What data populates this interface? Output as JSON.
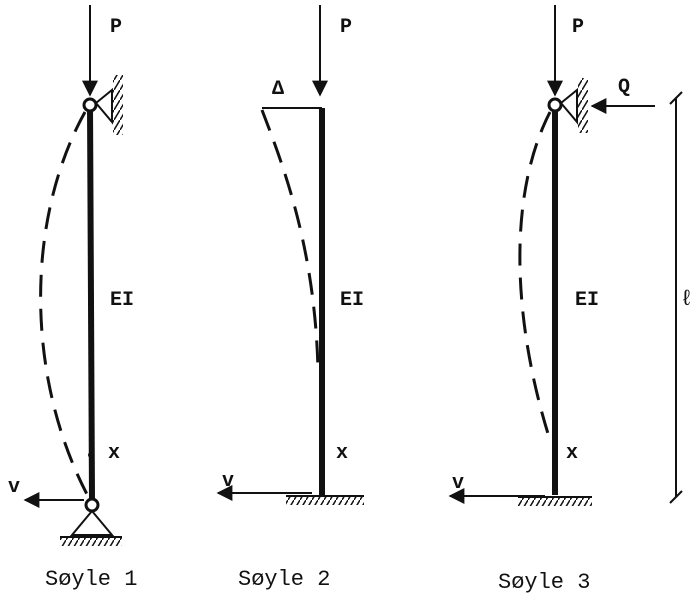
{
  "columns": [
    {
      "load": "P",
      "stiffness": "EI",
      "coordinate": "x",
      "displacement": "v",
      "caption": "Søyle 1"
    },
    {
      "load": "P",
      "stiffness": "EI",
      "coordinate": "x",
      "displacement": "v",
      "caption": "Søyle 2",
      "top_displacement": "Δ"
    },
    {
      "load": "P",
      "stiffness": "EI",
      "coordinate": "x",
      "displacement": "v",
      "caption": "Søyle 3",
      "lateral_load": "Q"
    }
  ],
  "length": "ℓ"
}
